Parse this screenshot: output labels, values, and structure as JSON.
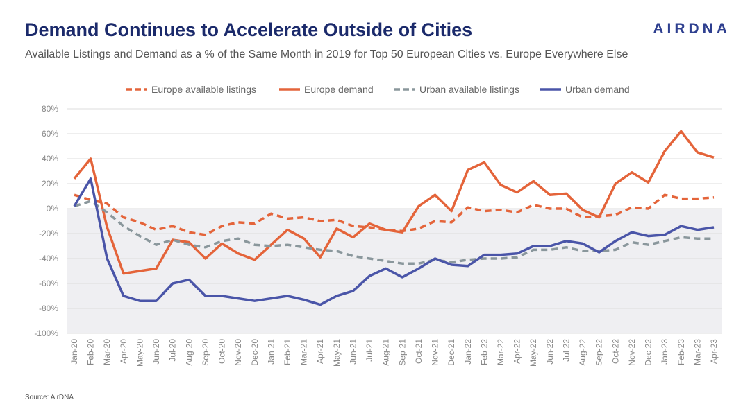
{
  "logo": "AIRDNA",
  "source": "Source: AirDNA",
  "chart_data": {
    "type": "line",
    "title": "Demand Continues to Accelerate Outside of Cities",
    "subtitle": "Available Listings and Demand as a % of the Same Month in 2019 for Top 50 European Cities vs. Europe Everywhere Else",
    "xlabel": "",
    "ylabel": "",
    "ylim": [
      -100,
      80
    ],
    "yticks": [
      80,
      60,
      40,
      20,
      0,
      -20,
      -40,
      -60,
      -80,
      -100
    ],
    "ytick_labels": [
      "80%",
      "60%",
      "40%",
      "20%",
      "0%",
      "-20%",
      "-40%",
      "-60%",
      "-80%",
      "-100%"
    ],
    "legend_position": "top",
    "grid": true,
    "categories": [
      "Jan-20",
      "Feb-20",
      "Mar-20",
      "Apr-20",
      "May-20",
      "Jun-20",
      "Jul-20",
      "Aug-20",
      "Sep-20",
      "Oct-20",
      "Nov-20",
      "Dec-20",
      "Jan-21",
      "Feb-21",
      "Mar-21",
      "Apr-21",
      "May-21",
      "Jun-21",
      "Jul-21",
      "Aug-21",
      "Sep-21",
      "Oct-21",
      "Nov-21",
      "Dec-21",
      "Jan-22",
      "Feb-22",
      "Mar-22",
      "Apr-22",
      "May-22",
      "Jun-22",
      "Jul-22",
      "Aug-22",
      "Sep-22",
      "Oct-22",
      "Nov-22",
      "Dec-22",
      "Jan-23",
      "Feb-23",
      "Mar-23",
      "Apr-23"
    ],
    "series": [
      {
        "name": "Europe available listings",
        "color": "#e4643a",
        "dashed": true,
        "values": [
          11,
          7,
          4,
          -7,
          -11,
          -17,
          -14,
          -19,
          -21,
          -14,
          -11,
          -12,
          -4,
          -8,
          -7,
          -10,
          -9,
          -14,
          -15,
          -17,
          -18,
          -16,
          -10,
          -11,
          1,
          -2,
          -1,
          -3,
          3,
          0,
          0,
          -7,
          -6,
          -5,
          1,
          0,
          11,
          8,
          8,
          9
        ]
      },
      {
        "name": "Europe demand",
        "color": "#e4643a",
        "dashed": false,
        "values": [
          24,
          40,
          -15,
          -52,
          -50,
          -48,
          -25,
          -27,
          -40,
          -28,
          -36,
          -41,
          -29,
          -17,
          -24,
          -39,
          -16,
          -23,
          -12,
          -17,
          -19,
          2,
          11,
          -2,
          31,
          37,
          19,
          13,
          22,
          11,
          12,
          -1,
          -7,
          20,
          29,
          21,
          46,
          62,
          45,
          41
        ]
      },
      {
        "name": "Urban available listings",
        "color": "#8a979c",
        "dashed": true,
        "values": [
          2,
          6,
          -3,
          -14,
          -22,
          -29,
          -25,
          -29,
          -31,
          -26,
          -24,
          -29,
          -30,
          -29,
          -31,
          -33,
          -34,
          -38,
          -40,
          -42,
          -44,
          -44,
          -41,
          -43,
          -41,
          -40,
          -40,
          -39,
          -33,
          -33,
          -31,
          -34,
          -34,
          -33,
          -27,
          -29,
          -26,
          -23,
          -24,
          -24
        ]
      },
      {
        "name": "Urban demand",
        "color": "#4a55a8",
        "dashed": false,
        "values": [
          2,
          24,
          -40,
          -70,
          -74,
          -74,
          -60,
          -57,
          -70,
          -70,
          -72,
          -74,
          -72,
          -70,
          -73,
          -77,
          -70,
          -66,
          -54,
          -48,
          -55,
          -48,
          -40,
          -45,
          -46,
          -37,
          -37,
          -36,
          -30,
          -30,
          -26,
          -28,
          -35,
          -26,
          -19,
          -22,
          -21,
          -14,
          -17,
          -15
        ]
      }
    ]
  }
}
